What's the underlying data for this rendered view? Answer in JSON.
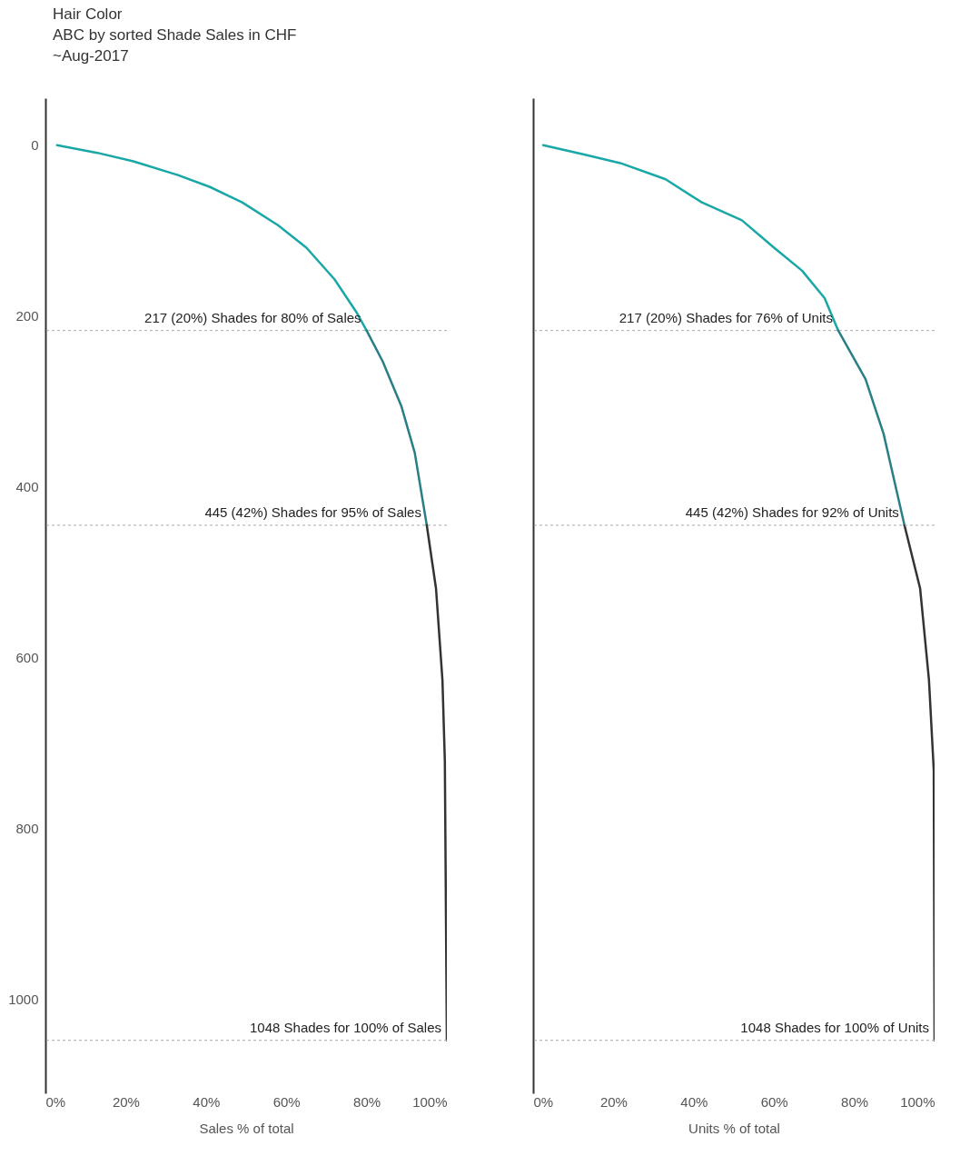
{
  "chart_data": [
    {
      "type": "line",
      "title": "Hair Color",
      "subtitle": "ABC by sorted Shade Sales in CHF\n~Aug-2017",
      "xlabel": "Sales % of total",
      "xlim": [
        0,
        100
      ],
      "xticks": [
        {
          "value": 0,
          "label": "0%"
        },
        {
          "value": 20,
          "label": "20%"
        },
        {
          "value": 40,
          "label": "40%"
        },
        {
          "value": 60,
          "label": "60%"
        },
        {
          "value": 80,
          "label": "80%"
        },
        {
          "value": 100,
          "label": "100%"
        }
      ],
      "ylim": [
        1110,
        -55
      ],
      "yticks": [
        0,
        200,
        400,
        600,
        800,
        {
          "value": 1000,
          "label": "1000"
        }
      ],
      "grid": false,
      "line_style": "solid",
      "marker": "none",
      "series": [
        {
          "color": "#1aa7a7",
          "x": [
            2.9,
            12.9,
            21.9,
            33,
            41,
            49,
            58,
            65,
            72,
            77.4,
            80
          ],
          "values": [
            0,
            9,
            19,
            35,
            49,
            67,
            94,
            120,
            157,
            195,
            217
          ]
        },
        {
          "color": "#2a7f86",
          "x": [
            80,
            84,
            88.7,
            92,
            95
          ],
          "values": [
            217,
            253,
            306,
            360,
            445
          ]
        },
        {
          "color": "#333333",
          "x": [
            95,
            97.3,
            98.9,
            99.5,
            100
          ],
          "values": [
            445,
            519,
            626,
            721,
            1048
          ]
        }
      ],
      "ref_lines": [
        {
          "axis": "y",
          "value": 217,
          "label": "217 (20%) Shades for 80% of Sales",
          "color": "#aaaaaa",
          "line_style": "dashed"
        },
        {
          "axis": "y",
          "value": 445,
          "label": "445 (42%) Shades for 95% of Sales",
          "color": "#aaaaaa",
          "line_style": "dashed"
        },
        {
          "axis": "y",
          "value": 1048,
          "label": "1048 Shades for 100% of Sales",
          "color": "#aaaaaa",
          "line_style": "dashed"
        }
      ]
    },
    {
      "type": "line",
      "xlabel": "Units % of total",
      "xlim": [
        0,
        100
      ],
      "xticks": [
        {
          "value": 0,
          "label": "0%"
        },
        {
          "value": 20,
          "label": "20%"
        },
        {
          "value": 40,
          "label": "40%"
        },
        {
          "value": 60,
          "label": "60%"
        },
        {
          "value": 80,
          "label": "80%"
        },
        {
          "value": 100,
          "label": "100%"
        }
      ],
      "ylim": [
        1110,
        -55
      ],
      "tick_labels": "x",
      "grid": false,
      "line_style": "solid",
      "marker": "none",
      "series": [
        {
          "color": "#1aa7a7",
          "x": [
            2.5,
            12.7,
            21.7,
            33,
            42,
            52,
            60,
            67,
            72.6,
            76
          ],
          "values": [
            0,
            11,
            21,
            40,
            67,
            88,
            120,
            147,
            179,
            217
          ]
        },
        {
          "color": "#2a7f86",
          "x": [
            76,
            82.8,
            87.3,
            92.5
          ],
          "values": [
            217,
            274,
            338,
            445
          ]
        },
        {
          "color": "#333333",
          "x": [
            92.5,
            96.4,
            98.6,
            99.8,
            100
          ],
          "values": [
            445,
            519,
            626,
            732,
            1048
          ]
        }
      ],
      "ref_lines": [
        {
          "axis": "y",
          "value": 217,
          "label": "217 (20%) Shades for 76% of Units",
          "color": "#aaaaaa",
          "line_style": "dashed"
        },
        {
          "axis": "y",
          "value": 445,
          "label": "445 (42%) Shades for 92% of Units",
          "color": "#aaaaaa",
          "line_style": "dashed"
        },
        {
          "axis": "y",
          "value": 1048,
          "label": "1048 Shades for 100% of Units",
          "color": "#aaaaaa",
          "line_style": "dashed"
        }
      ]
    }
  ]
}
